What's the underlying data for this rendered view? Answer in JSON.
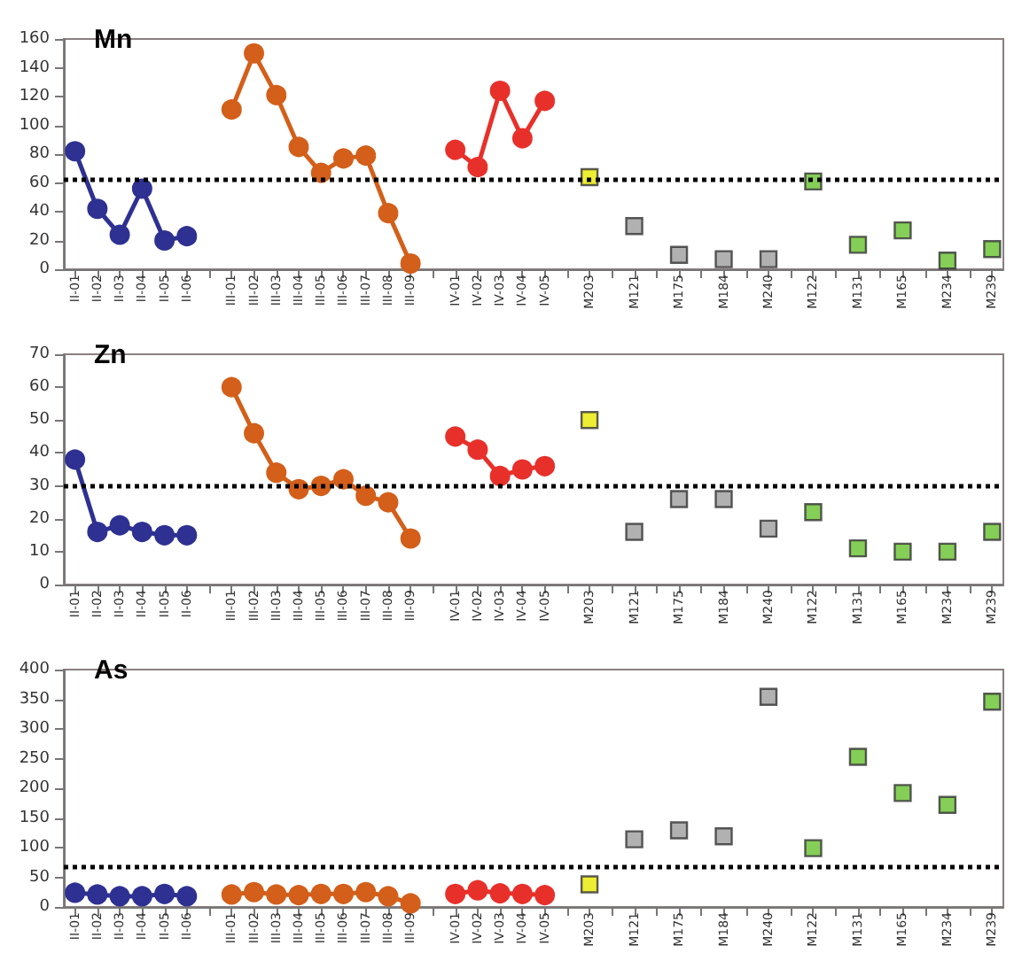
{
  "chart_data": [
    {
      "type": "line",
      "title": "Mn",
      "categories": [
        "II-01",
        "II-02",
        "II-03",
        "II-04",
        "II-05",
        "II-06",
        null,
        "III-01",
        "III-02",
        "III-03",
        "III-04",
        "III-05",
        "III-06",
        "III-07",
        "III-08",
        "III-09",
        null,
        "IV-01",
        "IV-02",
        "IV-03",
        "IV-04",
        "IV-05",
        null,
        "M203",
        null,
        "M121",
        null,
        "M175",
        null,
        "M184",
        null,
        "M240",
        null,
        "M122",
        null,
        "M131",
        null,
        "M165",
        null,
        "M234",
        null,
        "M239"
      ],
      "ylim": [
        0,
        160
      ],
      "yticks": [
        0,
        20,
        40,
        60,
        80,
        100,
        120,
        140,
        160
      ],
      "marker": "circle",
      "line_style": "solid",
      "ref_lines": [
        {
          "axis": "y",
          "value": 62,
          "color": "#000000",
          "line_style": "dotted"
        }
      ],
      "series": [
        {
          "color": "#2e3192",
          "values": [
            82,
            42,
            24,
            56,
            20,
            23,
            null,
            null,
            null,
            null,
            null,
            null,
            null,
            null,
            null,
            null,
            null,
            null,
            null,
            null,
            null,
            null,
            null,
            null,
            null,
            null,
            null,
            null,
            null,
            null,
            null,
            null,
            null,
            null,
            null,
            null,
            null,
            null,
            null,
            null,
            null,
            null
          ]
        },
        {
          "color": "#d35f1a",
          "values": [
            null,
            null,
            null,
            null,
            null,
            null,
            null,
            111,
            150,
            121,
            85,
            67,
            77,
            79,
            39,
            4,
            null,
            null,
            null,
            null,
            null,
            null,
            null,
            null,
            null,
            null,
            null,
            null,
            null,
            null,
            null,
            null,
            null,
            null,
            null,
            null,
            null,
            null,
            null,
            null,
            null,
            null
          ]
        },
        {
          "color": "#e8302a",
          "values": [
            null,
            null,
            null,
            null,
            null,
            null,
            null,
            null,
            null,
            null,
            null,
            null,
            null,
            null,
            null,
            null,
            null,
            83,
            71,
            124,
            91,
            117,
            null,
            null,
            null,
            null,
            null,
            null,
            null,
            null,
            null,
            null,
            null,
            null,
            null,
            null,
            null,
            null,
            null,
            null,
            null,
            null
          ]
        },
        {
          "type": "scatter",
          "marker": "square",
          "color": "#e8e800",
          "values": [
            null,
            null,
            null,
            null,
            null,
            null,
            null,
            null,
            null,
            null,
            null,
            null,
            null,
            null,
            null,
            null,
            null,
            null,
            null,
            null,
            null,
            null,
            null,
            64,
            null,
            null,
            null,
            null,
            null,
            null,
            null,
            null,
            null,
            null,
            null,
            null,
            null,
            null,
            null,
            null,
            null,
            null
          ]
        },
        {
          "type": "scatter",
          "marker": "square",
          "color": "#9e9e9e",
          "values": [
            null,
            null,
            null,
            null,
            null,
            null,
            null,
            null,
            null,
            null,
            null,
            null,
            null,
            null,
            null,
            null,
            null,
            null,
            null,
            null,
            null,
            null,
            null,
            null,
            null,
            30,
            null,
            10,
            null,
            7,
            null,
            7,
            null,
            null,
            null,
            null,
            null,
            null,
            null,
            null,
            null,
            null
          ]
        },
        {
          "type": "scatter",
          "marker": "square",
          "color": "#66c22e",
          "values": [
            null,
            null,
            null,
            null,
            null,
            null,
            null,
            null,
            null,
            null,
            null,
            null,
            null,
            null,
            null,
            null,
            null,
            null,
            null,
            null,
            null,
            null,
            null,
            null,
            null,
            null,
            null,
            null,
            null,
            null,
            null,
            null,
            null,
            61,
            null,
            17,
            null,
            27,
            null,
            6,
            null,
            14
          ]
        }
      ]
    },
    {
      "type": "line",
      "title": "Zn",
      "categories": [
        "II-01",
        "II-02",
        "II-03",
        "II-04",
        "II-05",
        "II-06",
        null,
        "III-01",
        "III-02",
        "III-03",
        "III-04",
        "III-05",
        "III-06",
        "III-07",
        "III-08",
        "III-09",
        null,
        "IV-01",
        "IV-02",
        "IV-03",
        "IV-04",
        "IV-05",
        null,
        "M203",
        null,
        "M121",
        null,
        "M175",
        null,
        "M184",
        null,
        "M240",
        null,
        "M122",
        null,
        "M131",
        null,
        "M165",
        null,
        "M234",
        null,
        "M239"
      ],
      "ylim": [
        0,
        70
      ],
      "yticks": [
        0,
        10,
        20,
        30,
        40,
        50,
        60,
        70
      ],
      "marker": "circle",
      "line_style": "solid",
      "ref_lines": [
        {
          "axis": "y",
          "value": 30,
          "color": "#000000",
          "line_style": "dotted"
        }
      ],
      "series": [
        {
          "color": "#2e3192",
          "values": [
            38,
            16,
            18,
            16,
            15,
            15,
            null,
            null,
            null,
            null,
            null,
            null,
            null,
            null,
            null,
            null,
            null,
            null,
            null,
            null,
            null,
            null,
            null,
            null,
            null,
            null,
            null,
            null,
            null,
            null,
            null,
            null,
            null,
            null,
            null,
            null,
            null,
            null,
            null,
            null,
            null,
            null
          ]
        },
        {
          "color": "#d35f1a",
          "values": [
            null,
            null,
            null,
            null,
            null,
            null,
            null,
            60,
            46,
            34,
            29,
            30,
            32,
            27,
            25,
            14,
            null,
            null,
            null,
            null,
            null,
            null,
            null,
            null,
            null,
            null,
            null,
            null,
            null,
            null,
            null,
            null,
            null,
            null,
            null,
            null,
            null,
            null,
            null,
            null,
            null,
            null
          ]
        },
        {
          "color": "#e8302a",
          "values": [
            null,
            null,
            null,
            null,
            null,
            null,
            null,
            null,
            null,
            null,
            null,
            null,
            null,
            null,
            null,
            null,
            null,
            45,
            41,
            33,
            35,
            36,
            null,
            null,
            null,
            null,
            null,
            null,
            null,
            null,
            null,
            null,
            null,
            null,
            null,
            null,
            null,
            null,
            null,
            null,
            null,
            null
          ]
        },
        {
          "type": "scatter",
          "marker": "square",
          "color": "#e8e800",
          "values": [
            null,
            null,
            null,
            null,
            null,
            null,
            null,
            null,
            null,
            null,
            null,
            null,
            null,
            null,
            null,
            null,
            null,
            null,
            null,
            null,
            null,
            null,
            null,
            50,
            null,
            null,
            null,
            null,
            null,
            null,
            null,
            null,
            null,
            null,
            null,
            null,
            null,
            null,
            null,
            null,
            null,
            null
          ]
        },
        {
          "type": "scatter",
          "marker": "square",
          "color": "#9e9e9e",
          "values": [
            null,
            null,
            null,
            null,
            null,
            null,
            null,
            null,
            null,
            null,
            null,
            null,
            null,
            null,
            null,
            null,
            null,
            null,
            null,
            null,
            null,
            null,
            null,
            null,
            null,
            16,
            null,
            26,
            null,
            26,
            null,
            17,
            null,
            null,
            null,
            null,
            null,
            null,
            null,
            null,
            null,
            null
          ]
        },
        {
          "type": "scatter",
          "marker": "square",
          "color": "#66c22e",
          "values": [
            null,
            null,
            null,
            null,
            null,
            null,
            null,
            null,
            null,
            null,
            null,
            null,
            null,
            null,
            null,
            null,
            null,
            null,
            null,
            null,
            null,
            null,
            null,
            null,
            null,
            null,
            null,
            null,
            null,
            null,
            null,
            null,
            null,
            22,
            null,
            11,
            null,
            10,
            null,
            10,
            null,
            16
          ]
        }
      ]
    },
    {
      "type": "line",
      "title": "As",
      "categories": [
        "II-01",
        "II-02",
        "II-03",
        "II-04",
        "II-05",
        "II-06",
        null,
        "III-01",
        "III-02",
        "III-03",
        "III-04",
        "III-05",
        "III-06",
        "III-07",
        "III-08",
        "III-09",
        null,
        "IV-01",
        "IV-02",
        "IV-03",
        "IV-04",
        "IV-05",
        null,
        "M203",
        null,
        "M121",
        null,
        "M175",
        null,
        "M184",
        null,
        "M240",
        null,
        "M122",
        null,
        "M131",
        null,
        "M165",
        null,
        "M234",
        null,
        "M239"
      ],
      "ylim": [
        0,
        400
      ],
      "yticks": [
        0,
        50,
        100,
        150,
        200,
        250,
        300,
        350,
        400
      ],
      "marker": "circle",
      "line_style": "solid",
      "ref_lines": [
        {
          "axis": "y",
          "value": 67,
          "color": "#000000",
          "line_style": "dotted"
        }
      ],
      "series": [
        {
          "color": "#2e3192",
          "values": [
            24,
            21,
            18,
            18,
            22,
            18,
            null,
            null,
            null,
            null,
            null,
            null,
            null,
            null,
            null,
            null,
            null,
            null,
            null,
            null,
            null,
            null,
            null,
            null,
            null,
            null,
            null,
            null,
            null,
            null,
            null,
            null,
            null,
            null,
            null,
            null,
            null,
            null,
            null,
            null,
            null,
            null
          ]
        },
        {
          "color": "#d35f1a",
          "values": [
            null,
            null,
            null,
            null,
            null,
            null,
            null,
            21,
            25,
            21,
            20,
            22,
            22,
            25,
            18,
            6,
            null,
            null,
            null,
            null,
            null,
            null,
            null,
            null,
            null,
            null,
            null,
            null,
            null,
            null,
            null,
            null,
            null,
            null,
            null,
            null,
            null,
            null,
            null,
            null,
            null,
            null
          ]
        },
        {
          "color": "#e8302a",
          "values": [
            null,
            null,
            null,
            null,
            null,
            null,
            null,
            null,
            null,
            null,
            null,
            null,
            null,
            null,
            null,
            null,
            null,
            22,
            28,
            23,
            22,
            20,
            null,
            null,
            null,
            null,
            null,
            null,
            null,
            null,
            null,
            null,
            null,
            null,
            null,
            null,
            null,
            null,
            null,
            null,
            null,
            null
          ]
        },
        {
          "type": "scatter",
          "marker": "square",
          "color": "#e8e800",
          "values": [
            null,
            null,
            null,
            null,
            null,
            null,
            null,
            null,
            null,
            null,
            null,
            null,
            null,
            null,
            null,
            null,
            null,
            null,
            null,
            null,
            null,
            null,
            null,
            38,
            null,
            null,
            null,
            null,
            null,
            null,
            null,
            null,
            null,
            null,
            null,
            null,
            null,
            null,
            null,
            null,
            null,
            null
          ]
        },
        {
          "type": "scatter",
          "marker": "square",
          "color": "#9e9e9e",
          "values": [
            null,
            null,
            null,
            null,
            null,
            null,
            null,
            null,
            null,
            null,
            null,
            null,
            null,
            null,
            null,
            null,
            null,
            null,
            null,
            null,
            null,
            null,
            null,
            null,
            null,
            114,
            null,
            129,
            null,
            119,
            null,
            354,
            null,
            null,
            null,
            null,
            null,
            null,
            null,
            null,
            null,
            null
          ]
        },
        {
          "type": "scatter",
          "marker": "square",
          "color": "#66c22e",
          "values": [
            null,
            null,
            null,
            null,
            null,
            null,
            null,
            null,
            null,
            null,
            null,
            null,
            null,
            null,
            null,
            null,
            null,
            null,
            null,
            null,
            null,
            null,
            null,
            null,
            null,
            null,
            null,
            null,
            null,
            null,
            null,
            null,
            null,
            99,
            null,
            253,
            null,
            192,
            null,
            172,
            null,
            346
          ]
        }
      ]
    }
  ]
}
